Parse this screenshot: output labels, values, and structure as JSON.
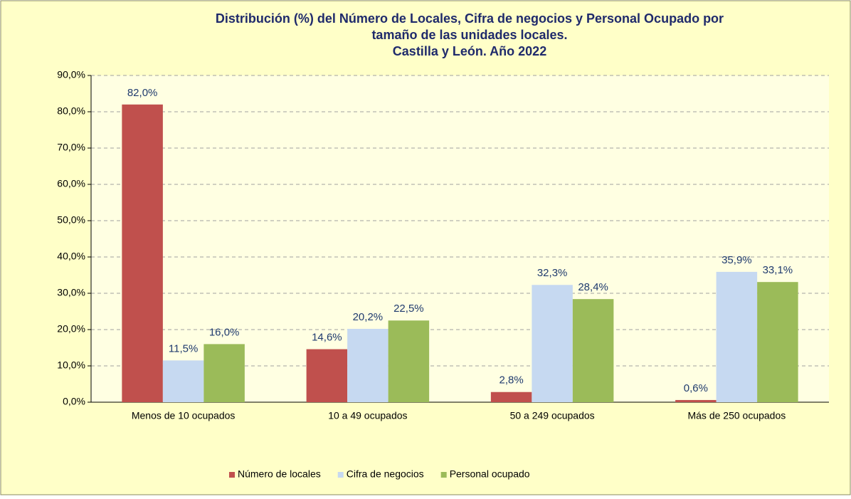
{
  "chart_data": {
    "type": "bar",
    "title": [
      "Distribución (%) del Número de Locales, Cifra de negocios y  Personal Ocupado por",
      "tamaño de las unidades locales.",
      "Castilla y León. Año 2022"
    ],
    "categories": [
      "Menos de 10 ocupados",
      "10 a 49 ocupados",
      "50 a 249 ocupados",
      "Más de 250 ocupados"
    ],
    "series": [
      {
        "name": "Número de locales",
        "color": "#c0504d",
        "values": [
          82.0,
          14.6,
          2.8,
          0.6
        ],
        "value_labels": [
          "82,0%",
          "14,6%",
          "2,8%",
          "0,6%"
        ]
      },
      {
        "name": "Cifra de negocios",
        "color": "#c6d9f1",
        "values": [
          11.5,
          20.2,
          32.3,
          35.9
        ],
        "value_labels": [
          "11,5%",
          "20,2%",
          "32,3%",
          "35,9%"
        ]
      },
      {
        "name": "Personal ocupado",
        "color": "#9bbb59",
        "values": [
          16.0,
          22.5,
          28.4,
          33.1
        ],
        "value_labels": [
          "16,0%",
          "22,5%",
          "28,4%",
          "33,1%"
        ]
      }
    ],
    "ylim": [
      0,
      90
    ],
    "yticks": [
      {
        "value": 0,
        "label": "0,0%"
      },
      {
        "value": 10,
        "label": "10,0%"
      },
      {
        "value": 20,
        "label": "20,0%"
      },
      {
        "value": 30,
        "label": "30,0%"
      },
      {
        "value": 40,
        "label": "40,0%"
      },
      {
        "value": 50,
        "label": "50,0%"
      },
      {
        "value": 60,
        "label": "60,0%"
      },
      {
        "value": 70,
        "label": "70,0%"
      },
      {
        "value": 80,
        "label": "80,0%"
      },
      {
        "value": 90,
        "label": "90,0%"
      }
    ],
    "grid": true,
    "legend": "bottom"
  }
}
